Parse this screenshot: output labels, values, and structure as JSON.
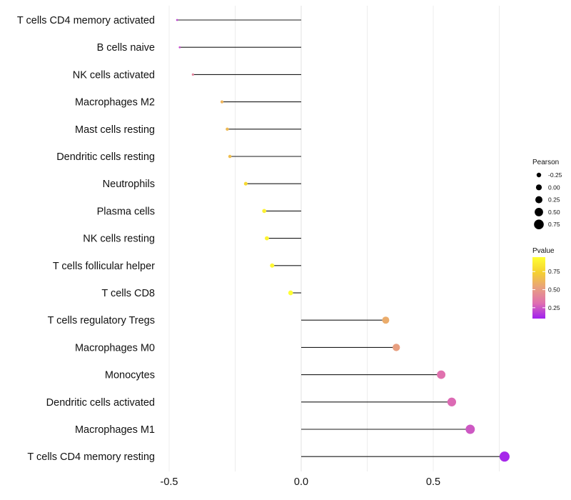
{
  "chart_data": {
    "type": "lollipop",
    "title": "",
    "xlabel": "",
    "ylabel": "",
    "xlim": [
      -0.5,
      0.85
    ],
    "x_ticks": [
      -0.5,
      0.0,
      0.5
    ],
    "x_tick_labels": [
      "-0.5",
      "0.0",
      "0.5"
    ],
    "grid": true,
    "categories": [
      "T cells CD4 memory activated",
      "B cells naive",
      "NK cells activated",
      "Macrophages M2",
      "Mast cells resting",
      "Dendritic cells resting",
      "Neutrophils",
      "Plasma cells",
      "NK cells resting",
      "T cells follicular helper",
      "T cells CD8",
      "T cells regulatory  Tregs",
      "Macrophages M0",
      "Monocytes",
      "Dendritic cells activated",
      "Macrophages M1",
      "T cells CD4 memory resting"
    ],
    "pearson": [
      -0.47,
      -0.46,
      -0.41,
      -0.3,
      -0.28,
      -0.27,
      -0.21,
      -0.14,
      -0.13,
      -0.11,
      -0.04,
      0.32,
      0.36,
      0.53,
      0.57,
      0.64,
      0.77
    ],
    "pvalue": [
      0.2,
      0.22,
      0.4,
      0.62,
      0.64,
      0.66,
      0.78,
      0.88,
      0.9,
      0.92,
      0.98,
      0.58,
      0.52,
      0.32,
      0.3,
      0.25,
      0.12
    ],
    "legend": {
      "position": "right",
      "size_title": "Pearson",
      "size_values": [
        -0.25,
        0.0,
        0.25,
        0.5,
        0.75
      ],
      "size_labels": [
        "-0.25",
        "0.00",
        "0.25",
        "0.50",
        "0.75"
      ],
      "color_title": "Pvalue",
      "color_range": [
        0.1,
        0.95
      ],
      "color_ticks": [
        0.75,
        0.5,
        0.25
      ],
      "color_tick_labels": [
        "0.75",
        "0.50",
        "0.25"
      ],
      "colors": [
        "#a020f0",
        "#e06fb0",
        "#e8a07f",
        "#f5d030",
        "#ffff33"
      ]
    }
  }
}
